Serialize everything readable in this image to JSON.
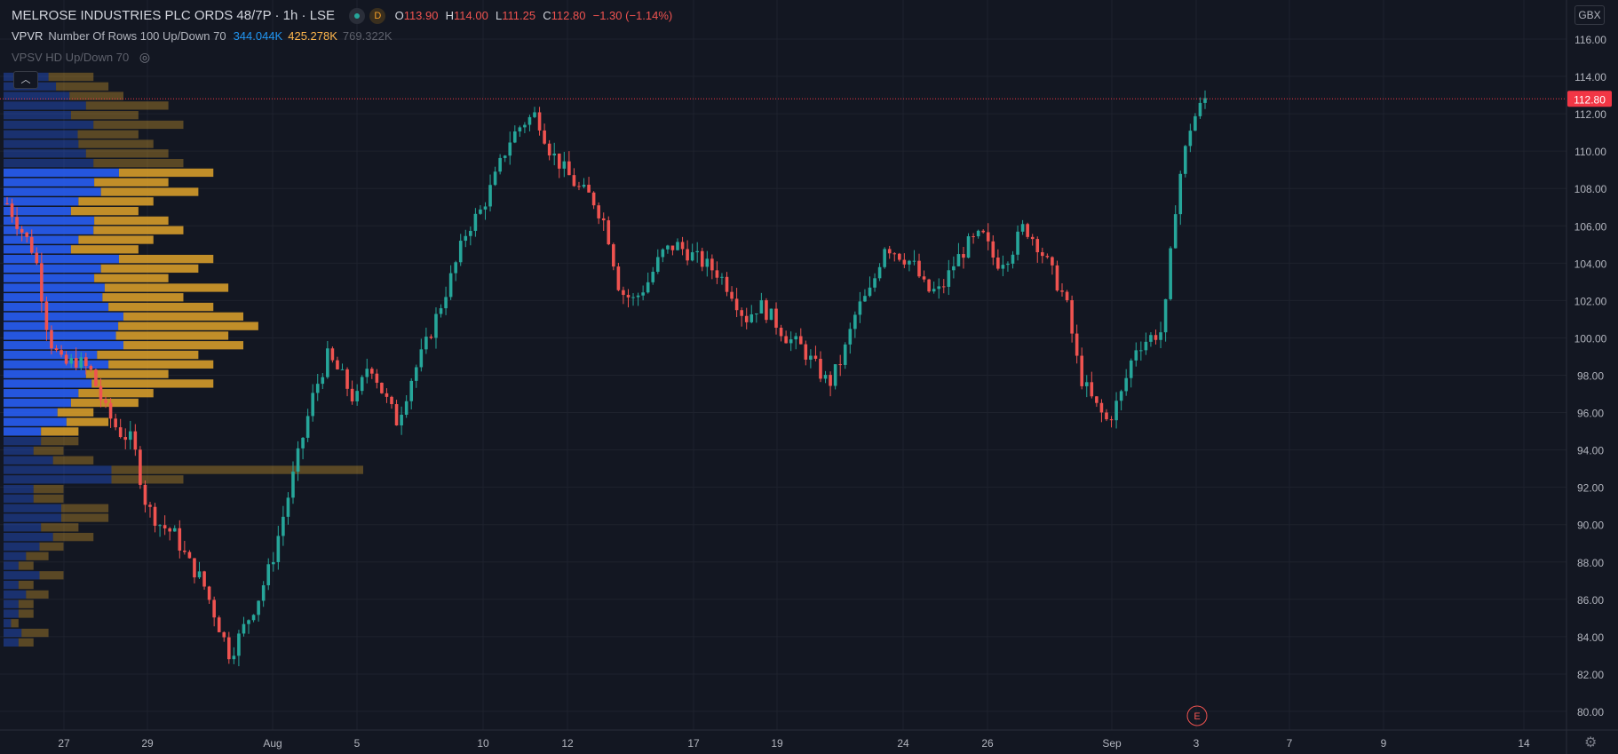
{
  "header": {
    "symbol": "MELROSE INDUSTRIES PLC ORDS 48/7P",
    "interval": "1h",
    "exchange": "LSE",
    "sep": "·",
    "d_badge": "D",
    "open_key": "O",
    "open": "113.90",
    "high_key": "H",
    "high": "114.00",
    "low_key": "L",
    "low": "111.25",
    "close_key": "C",
    "close": "112.80",
    "change": "−1.30 (−1.14%)"
  },
  "indicators": {
    "vpvr": {
      "name": "VPVR",
      "params": "Number Of Rows 100 Up/Down 70",
      "up_vol": "344.044K",
      "down_vol": "425.278K",
      "total_vol": "769.322K"
    },
    "vpsv": {
      "name": "VPSV HD Up/Down 70",
      "eye_icon": "eye-crossed-icon"
    },
    "collapse_icon": "chevron-up-icon"
  },
  "currency_button": "GBX",
  "settings_icon": "gear-icon",
  "earnings_marker": "E",
  "colors": {
    "background": "#131722",
    "grid": "#1e222d",
    "up": "#26a69a",
    "down": "#ef5350",
    "vp_up": "#2962ff",
    "vp_down": "#e0a32a",
    "last_price": "#f23645"
  },
  "chart_data": {
    "type": "candlestick",
    "y_ticks": [
      "116.00",
      "114.00",
      "112.00",
      "110.00",
      "108.00",
      "106.00",
      "104.00",
      "102.00",
      "100.00",
      "98.00",
      "96.00",
      "94.00",
      "92.00",
      "90.00",
      "88.00",
      "86.00",
      "84.00",
      "82.00",
      "80.00"
    ],
    "ylim": [
      79.5,
      117.5
    ],
    "x_ticks": [
      "27",
      "29",
      "Aug",
      "5",
      "10",
      "12",
      "17",
      "19",
      "24",
      "26",
      "Sep",
      "3",
      "7",
      "9",
      "14"
    ],
    "last_price_label": "112.80",
    "last_price": 112.8,
    "path_prices": [
      107.2,
      105.8,
      104.5,
      100.0,
      98.5,
      98.8,
      98.2,
      96.2,
      95.0,
      94.5,
      91.0,
      90.0,
      89.5,
      88.0,
      87.0,
      85.0,
      83.0,
      84.5,
      86.0,
      88.0,
      91.0,
      94.0,
      97.0,
      99.0,
      98.0,
      96.5,
      98.8,
      97.0,
      95.5,
      97.8,
      99.5,
      101.5,
      103.5,
      105.8,
      106.8,
      108.5,
      110.5,
      111.5,
      112.0,
      110.0,
      109.0,
      108.0,
      107.5,
      106.0,
      102.5,
      102.0,
      103.0,
      104.5,
      105.0,
      104.5,
      104.0,
      103.5,
      102.5,
      101.0,
      101.8,
      101.0,
      100.0,
      99.5,
      98.5,
      97.5,
      99.0,
      101.5,
      102.5,
      105.0,
      104.5,
      104.0,
      102.5,
      102.5,
      104.0,
      105.0,
      105.5,
      104.0,
      104.5,
      106.0,
      105.0,
      103.5,
      102.0,
      98.0,
      96.5,
      95.5,
      97.0,
      99.5,
      100.0,
      100.4,
      108.0,
      111.5,
      112.8
    ],
    "volume_profile": {
      "price_range": [
        83.4,
        114.2
      ],
      "rows": 60,
      "totals": [
        2,
        3,
        1,
        2,
        2,
        3,
        2,
        4,
        2,
        3,
        4,
        6,
        5,
        7,
        7,
        4,
        4,
        12,
        24,
        6,
        4,
        5,
        5,
        7,
        6,
        9,
        10,
        14,
        11,
        14,
        13,
        16,
        15,
        17,
        16,
        14,
        12,
        15,
        11,
        13,
        14,
        9,
        10,
        12,
        11,
        9,
        10,
        13,
        11,
        14,
        12,
        11,
        10,
        9,
        12,
        9,
        11,
        8,
        7,
        6
      ],
      "up_fraction": [
        0.5,
        0.4,
        0.5,
        0.5,
        0.5,
        0.5,
        0.5,
        0.6,
        0.5,
        0.5,
        0.6,
        0.55,
        0.5,
        0.55,
        0.55,
        0.5,
        0.5,
        0.6,
        0.3,
        0.55,
        0.5,
        0.5,
        0.5,
        0.6,
        0.6,
        0.5,
        0.5,
        0.42,
        0.5,
        0.5,
        0.48,
        0.5,
        0.5,
        0.45,
        0.5,
        0.5,
        0.55,
        0.45,
        0.55,
        0.5,
        0.55,
        0.5,
        0.5,
        0.5,
        0.55,
        0.5,
        0.5,
        0.5,
        0.55,
        0.55,
        0.5,
        0.5,
        0.5,
        0.55,
        0.5,
        0.5,
        0.5,
        0.55,
        0.5,
        0.5
      ]
    }
  }
}
